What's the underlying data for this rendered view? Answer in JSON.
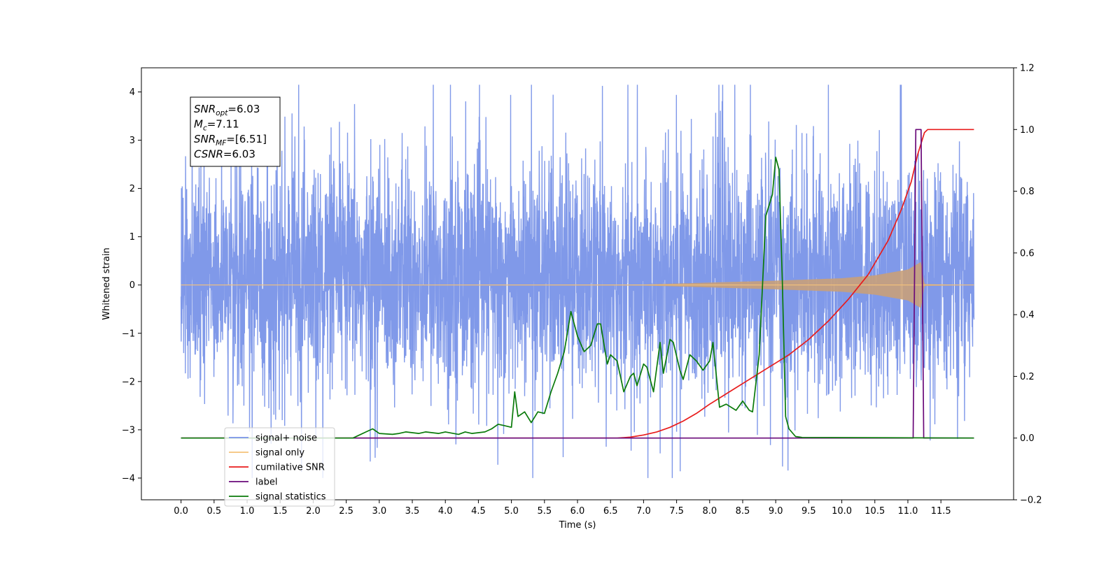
{
  "chart_data": {
    "type": "line",
    "xlabel": "Time (s)",
    "ylabel": "Whitened strain",
    "xlim": [
      -0.6,
      12.6
    ],
    "ylim": [
      -4.45,
      4.5
    ],
    "y2lim": [
      -0.2,
      1.2
    ],
    "x_ticks": [
      "0.0",
      "0.5",
      "1.0",
      "1.5",
      "2.0",
      "2.5",
      "3.0",
      "3.5",
      "4.0",
      "4.5",
      "5.0",
      "5.5",
      "6.0",
      "6.5",
      "7.0",
      "7.5",
      "8.0",
      "8.5",
      "9.0",
      "9.5",
      "10.0",
      "10.5",
      "11.0",
      "11.5"
    ],
    "y_ticks": [
      "−4",
      "−3",
      "−2",
      "−1",
      "0",
      "1",
      "2",
      "3",
      "4"
    ],
    "y2_ticks": [
      "−0.2",
      "0.0",
      "0.2",
      "0.4",
      "0.6",
      "0.8",
      "1.0",
      "1.2"
    ],
    "grid": false,
    "legend_position": "lower-left",
    "annotation": [
      {
        "base": "SNR",
        "sub": "opt",
        "rest": "=6.03"
      },
      {
        "base": "M",
        "sub": "c",
        "rest": "=7.11"
      },
      {
        "base": "SNR",
        "sub": "MF",
        "rest": "=[6.51]"
      },
      {
        "base": "CSNR",
        "sub": "",
        "rest": "=6.03"
      }
    ],
    "series": [
      {
        "name": "signal+ noise",
        "color": "#7993e8",
        "axis": "left",
        "kind": "noise",
        "x_range": [
          0.0,
          12.0
        ],
        "typical_envelope": [
          -1.7,
          2.0
        ],
        "extreme_range": [
          -4.0,
          4.15
        ]
      },
      {
        "name": "signal only",
        "color": "#f5c27a",
        "axis": "left",
        "kind": "chirp",
        "fill_color": "#c8a07a",
        "x": [
          0.0,
          7.0,
          8.0,
          9.0,
          10.0,
          10.5,
          11.0,
          11.2,
          11.25,
          12.0
        ],
        "amplitude": [
          0.0,
          0.01,
          0.05,
          0.09,
          0.14,
          0.2,
          0.32,
          0.48,
          0.02,
          0.0
        ]
      },
      {
        "name": "cumilative SNR",
        "color": "#e81c1c",
        "axis": "right",
        "x": [
          0.0,
          6.6,
          6.8,
          7.0,
          7.2,
          7.4,
          7.6,
          7.8,
          8.0,
          8.3,
          8.6,
          8.9,
          9.2,
          9.5,
          9.8,
          10.1,
          10.4,
          10.7,
          10.9,
          11.05,
          11.15,
          11.25,
          11.3,
          11.6,
          12.0
        ],
        "y": [
          0.0,
          0.0,
          0.003,
          0.01,
          0.02,
          0.035,
          0.055,
          0.08,
          0.11,
          0.15,
          0.19,
          0.23,
          0.27,
          0.32,
          0.38,
          0.45,
          0.53,
          0.64,
          0.74,
          0.83,
          0.92,
          0.99,
          1.0,
          1.0,
          1.0
        ]
      },
      {
        "name": "label",
        "color": "#6a0a7a",
        "axis": "right",
        "x": [
          0.0,
          11.08,
          11.12,
          11.2,
          11.24,
          11.28,
          12.0
        ],
        "y": [
          0.0,
          0.0,
          1.0,
          1.0,
          0.0,
          0.0,
          0.0
        ]
      },
      {
        "name": "signal statistics",
        "color": "#0a7a0a",
        "axis": "right",
        "x": [
          0.0,
          2.6,
          2.8,
          2.9,
          3.0,
          3.2,
          3.3,
          3.4,
          3.6,
          3.7,
          3.9,
          4.0,
          4.2,
          4.3,
          4.4,
          4.6,
          4.7,
          4.8,
          4.9,
          5.0,
          5.05,
          5.1,
          5.2,
          5.3,
          5.4,
          5.5,
          5.6,
          5.7,
          5.8,
          5.9,
          6.0,
          6.1,
          6.2,
          6.3,
          6.35,
          6.45,
          6.5,
          6.6,
          6.7,
          6.8,
          6.85,
          6.9,
          7.0,
          7.05,
          7.15,
          7.25,
          7.3,
          7.4,
          7.45,
          7.55,
          7.6,
          7.7,
          7.8,
          7.9,
          8.0,
          8.05,
          8.15,
          8.25,
          8.4,
          8.5,
          8.6,
          8.65,
          8.75,
          8.85,
          8.95,
          9.0,
          9.05,
          9.1,
          9.15,
          9.2,
          9.3,
          9.4,
          12.0
        ],
        "y": [
          0.0,
          0.0,
          0.02,
          0.03,
          0.015,
          0.012,
          0.015,
          0.02,
          0.015,
          0.02,
          0.015,
          0.02,
          0.012,
          0.02,
          0.015,
          0.02,
          0.03,
          0.045,
          0.04,
          0.035,
          0.15,
          0.07,
          0.085,
          0.05,
          0.085,
          0.08,
          0.15,
          0.21,
          0.28,
          0.41,
          0.33,
          0.28,
          0.3,
          0.37,
          0.37,
          0.24,
          0.27,
          0.25,
          0.15,
          0.2,
          0.21,
          0.17,
          0.24,
          0.23,
          0.15,
          0.31,
          0.21,
          0.32,
          0.31,
          0.22,
          0.19,
          0.27,
          0.25,
          0.22,
          0.25,
          0.31,
          0.1,
          0.11,
          0.09,
          0.12,
          0.09,
          0.085,
          0.27,
          0.72,
          0.79,
          0.91,
          0.87,
          0.51,
          0.07,
          0.03,
          0.005,
          0.002,
          0.0
        ]
      }
    ]
  }
}
